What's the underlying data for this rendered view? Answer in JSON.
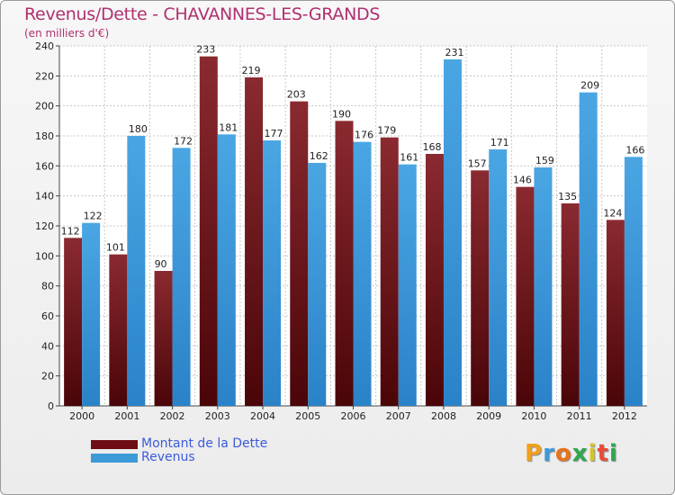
{
  "title": "Revenus/Dette - CHAVANNES-LES-GRANDS",
  "subtitle": "(en milliers d'€)",
  "logo": {
    "letters": [
      "P",
      "r",
      "o",
      "x",
      "i",
      "t",
      "i"
    ],
    "colors": [
      "#f0a01e",
      "#3d9ad8",
      "#e8731a",
      "#2fa84f",
      "#d8c51e",
      "#e84a3a",
      "#2fa84f"
    ]
  },
  "colors": {
    "dette": "#6e0e14",
    "revenus": "#3d9ad8",
    "title": "#b03070",
    "legend_text": "#3b5bdb"
  },
  "legend": [
    {
      "label": "Montant de la Dette",
      "color": "#6e0e14"
    },
    {
      "label": "Revenus",
      "color": "#3d9ad8"
    }
  ],
  "chart_data": {
    "type": "bar",
    "title": "Revenus/Dette - CHAVANNES-LES-GRANDS",
    "subtitle": "(en milliers d'€)",
    "categories": [
      "2000",
      "2001",
      "2002",
      "2003",
      "2004",
      "2005",
      "2006",
      "2007",
      "2008",
      "2009",
      "2010",
      "2011",
      "2012"
    ],
    "series": [
      {
        "name": "Montant de la Dette",
        "values": [
          112,
          101,
          90,
          233,
          219,
          203,
          190,
          179,
          168,
          157,
          146,
          135,
          124
        ]
      },
      {
        "name": "Revenus",
        "values": [
          122,
          180,
          172,
          181,
          177,
          162,
          176,
          161,
          231,
          171,
          159,
          209,
          166
        ]
      }
    ],
    "ylim": [
      0,
      240
    ],
    "yticks": [
      0,
      20,
      40,
      60,
      80,
      100,
      120,
      140,
      160,
      180,
      200,
      220,
      240
    ],
    "grid": true,
    "legend_position": "bottom-left"
  }
}
